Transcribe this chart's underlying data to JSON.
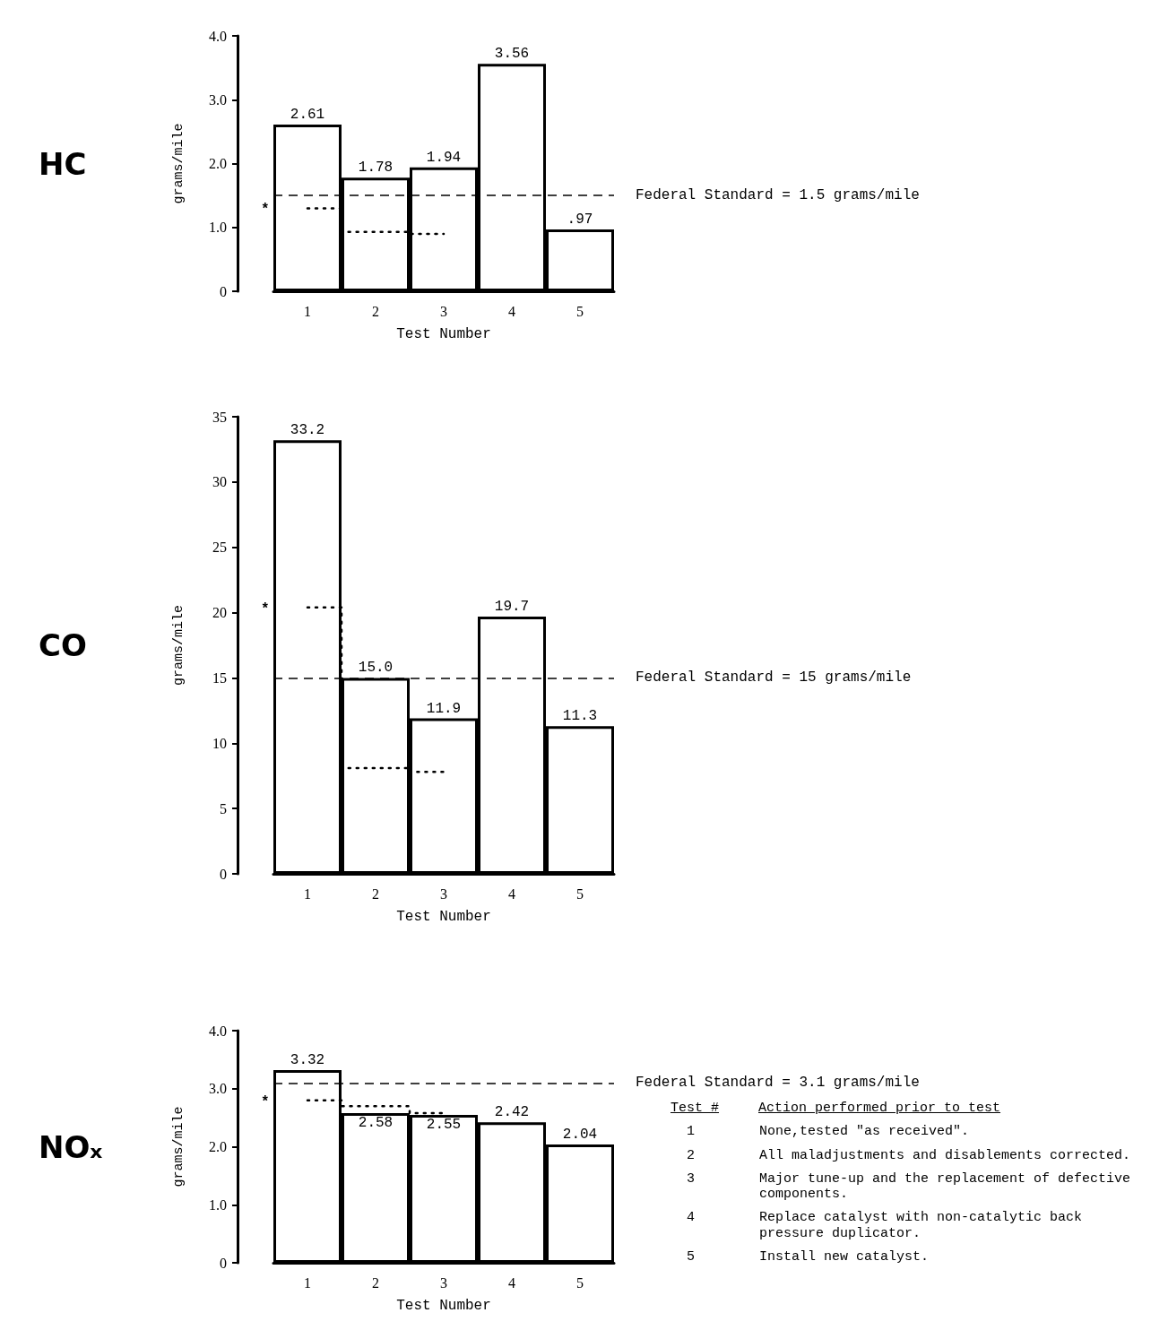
{
  "chart_data": [
    {
      "type": "bar",
      "title": "HC",
      "xlabel": "Test Number",
      "ylabel": "grams/mile",
      "categories": [
        "1",
        "2",
        "3",
        "4",
        "5"
      ],
      "series": [
        {
          "color": "#ffffff",
          "values": [
            2.61,
            1.78,
            1.94,
            3.56,
            0.97
          ],
          "value_labels": [
            "2.61",
            "1.78",
            "1.94",
            "3.56",
            ".97"
          ]
        },
        {
          "type": "step",
          "color": "#000000",
          "line_style": "dotted",
          "marker": "none",
          "values": [
            1.3,
            0.93,
            0.9,
            null,
            null
          ]
        }
      ],
      "ylim": [
        0,
        4.0
      ],
      "yticks": [
        {
          "value": 0,
          "label": "0"
        },
        {
          "value": 1,
          "label": "1.0"
        },
        {
          "value": 2,
          "label": "2.0"
        },
        {
          "value": 3,
          "label": "3.0"
        },
        {
          "value": 4,
          "label": "4.0"
        }
      ],
      "ref_lines": [
        {
          "axis": "y",
          "value": 1.5,
          "label": "Federal Standard = 1.5 grams/mile",
          "line_style": "dashed",
          "color": "#000000"
        }
      ],
      "annotations": [
        "*"
      ],
      "grid": false
    },
    {
      "type": "bar",
      "title": "CO",
      "xlabel": "Test Number",
      "ylabel": "grams/mile",
      "categories": [
        "1",
        "2",
        "3",
        "4",
        "5"
      ],
      "series": [
        {
          "color": "#ffffff",
          "values": [
            33.2,
            15.0,
            11.9,
            19.7,
            11.3
          ],
          "value_labels": [
            "33.2",
            "15.0",
            "11.9",
            "19.7",
            "11.3"
          ]
        },
        {
          "type": "step",
          "color": "#000000",
          "line_style": "dotted",
          "marker": "none",
          "values": [
            20.4,
            8.1,
            7.8,
            null,
            null
          ]
        }
      ],
      "ylim": [
        0,
        35
      ],
      "yticks": [
        0,
        5,
        10,
        15,
        20,
        25,
        30,
        35
      ],
      "ref_lines": [
        {
          "axis": "y",
          "value": 15,
          "label": "Federal Standard = 15 grams/mile",
          "line_style": "dashed",
          "color": "#000000"
        }
      ],
      "annotations": [
        "*"
      ],
      "grid": false
    },
    {
      "type": "bar",
      "title": "NOₓ",
      "xlabel": "Test Number",
      "ylabel": "grams/mile",
      "categories": [
        "1",
        "2",
        "3",
        "4",
        "5"
      ],
      "series": [
        {
          "color": "#ffffff",
          "values": [
            3.32,
            2.58,
            2.55,
            2.42,
            2.04
          ],
          "value_labels": [
            "3.32",
            "2.58",
            "2.55",
            "2.42",
            "2.04"
          ]
        },
        {
          "type": "step",
          "color": "#000000",
          "line_style": "dotted",
          "marker": "none",
          "values": [
            2.8,
            2.7,
            2.58,
            null,
            null
          ]
        }
      ],
      "ylim": [
        0,
        4.0
      ],
      "yticks": [
        {
          "value": 0,
          "label": "0"
        },
        {
          "value": 1,
          "label": "1.0"
        },
        {
          "value": 2,
          "label": "2.0"
        },
        {
          "value": 3,
          "label": "3.0"
        },
        {
          "value": 4,
          "label": "4.0"
        }
      ],
      "ref_lines": [
        {
          "axis": "y",
          "value": 3.1,
          "label": "Federal Standard = 3.1 grams/mile",
          "line_style": "dashed",
          "color": "#000000"
        }
      ],
      "annotations": [
        "*",
        "Test #",
        "Action performed prior to test",
        "1        None,tested \"as received\".",
        "2        All maladjustments and disablements corrected.",
        "3        Major tune-up and the replacement of defective components.",
        "4        Replace catalyst with non-catalytic back pressure duplicator.",
        "5        Install new catalyst."
      ],
      "grid": false
    }
  ]
}
